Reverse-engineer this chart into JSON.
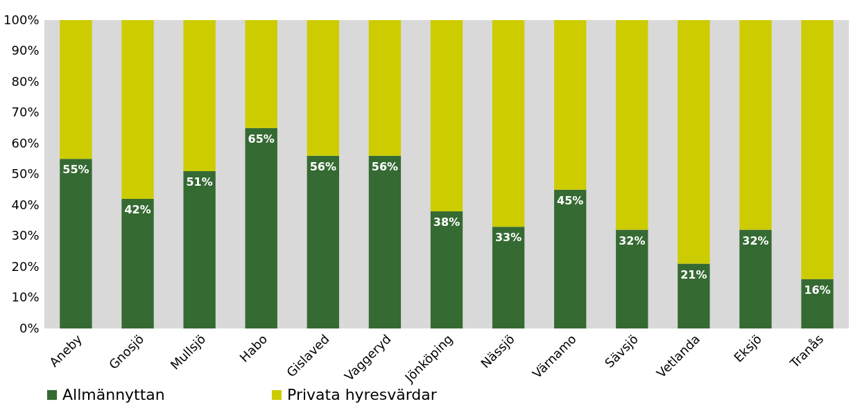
{
  "chart_data": {
    "type": "bar",
    "stacked": true,
    "categories": [
      "Aneby",
      "Gnosjö",
      "Mullsjö",
      "Habo",
      "Gislaved",
      "Vaggeryd",
      "Jönköping",
      "Nässjö",
      "Värnamo",
      "Sävsjö",
      "Vetlanda",
      "Eksjö",
      "Tranås"
    ],
    "series": [
      {
        "name": "Allmännyttan",
        "color": "#356a32",
        "values": [
          55,
          42,
          51,
          65,
          56,
          56,
          38,
          33,
          45,
          32,
          21,
          32,
          16
        ],
        "value_labels": [
          "55%",
          "42%",
          "51%",
          "65%",
          "56%",
          "56%",
          "38%",
          "33%",
          "45%",
          "32%",
          "21%",
          "32%",
          "16%"
        ]
      },
      {
        "name": "Privata hyresvärdar",
        "color": "#cccc00",
        "values": [
          45,
          58,
          49,
          35,
          44,
          44,
          62,
          67,
          55,
          68,
          79,
          68,
          84
        ]
      }
    ],
    "ylim": [
      0,
      100
    ],
    "yticks": [
      {
        "value": 0,
        "label": "0%"
      },
      {
        "value": 10,
        "label": "10%"
      },
      {
        "value": 20,
        "label": "20%"
      },
      {
        "value": 30,
        "label": "30%"
      },
      {
        "value": 40,
        "label": "40%"
      },
      {
        "value": 50,
        "label": "50%"
      },
      {
        "value": 60,
        "label": "60%"
      },
      {
        "value": 70,
        "label": "70%"
      },
      {
        "value": 80,
        "label": "80%"
      },
      {
        "value": 90,
        "label": "90%"
      },
      {
        "value": 100,
        "label": "100%"
      }
    ],
    "legend": "bottom",
    "grid": false
  }
}
